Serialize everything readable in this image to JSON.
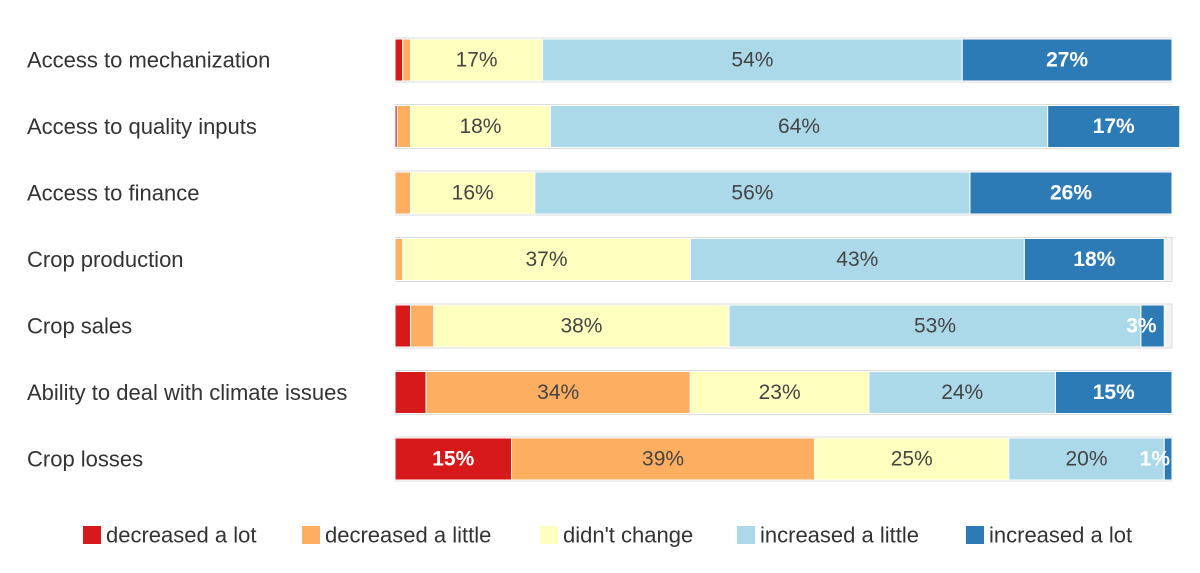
{
  "chart_data": {
    "type": "bar",
    "orientation": "horizontal",
    "stacked": "percent",
    "categories": [
      "Access to mechanization",
      "Access to quality inputs",
      "Access to finance",
      "Crop production",
      "Crop sales",
      "Ability to deal with climate issues",
      "Crop losses"
    ],
    "series": [
      {
        "name": "decreased a lot",
        "color": "#d7191c",
        "label_color": "#ffffff",
        "label_bold": true,
        "values": [
          1,
          0.3,
          0,
          0,
          2,
          4,
          15
        ]
      },
      {
        "name": "decreased a little",
        "color": "#fdae61",
        "label_color": "#444444",
        "label_bold": false,
        "values": [
          1,
          1.7,
          2,
          1,
          3,
          34,
          39
        ]
      },
      {
        "name": "didn't change",
        "color": "#ffffbf",
        "label_color": "#444444",
        "label_bold": false,
        "values": [
          17,
          18,
          16,
          37,
          38,
          23,
          25
        ]
      },
      {
        "name": "increased a little",
        "color": "#abd9e9",
        "label_color": "#444444",
        "label_bold": false,
        "values": [
          54,
          64,
          56,
          43,
          53,
          24,
          20
        ]
      },
      {
        "name": "increased a lot",
        "color": "#2c7bb6",
        "label_color": "#ffffff",
        "label_bold": true,
        "values": [
          27,
          17,
          26,
          18,
          3,
          15,
          1
        ]
      }
    ],
    "data_labels": [
      [
        null,
        null,
        "17%",
        "54%",
        "27%"
      ],
      [
        null,
        null,
        "18%",
        "64%",
        "17%"
      ],
      [
        null,
        null,
        "16%",
        "56%",
        "26%"
      ],
      [
        null,
        null,
        "37%",
        "43%",
        "18%"
      ],
      [
        null,
        null,
        "38%",
        "53%",
        "3%"
      ],
      [
        null,
        "34%",
        "23%",
        "24%",
        "15%"
      ],
      [
        "15%",
        "39%",
        "25%",
        "20%",
        "1%"
      ]
    ],
    "legend_position": "bottom",
    "grid": false
  }
}
